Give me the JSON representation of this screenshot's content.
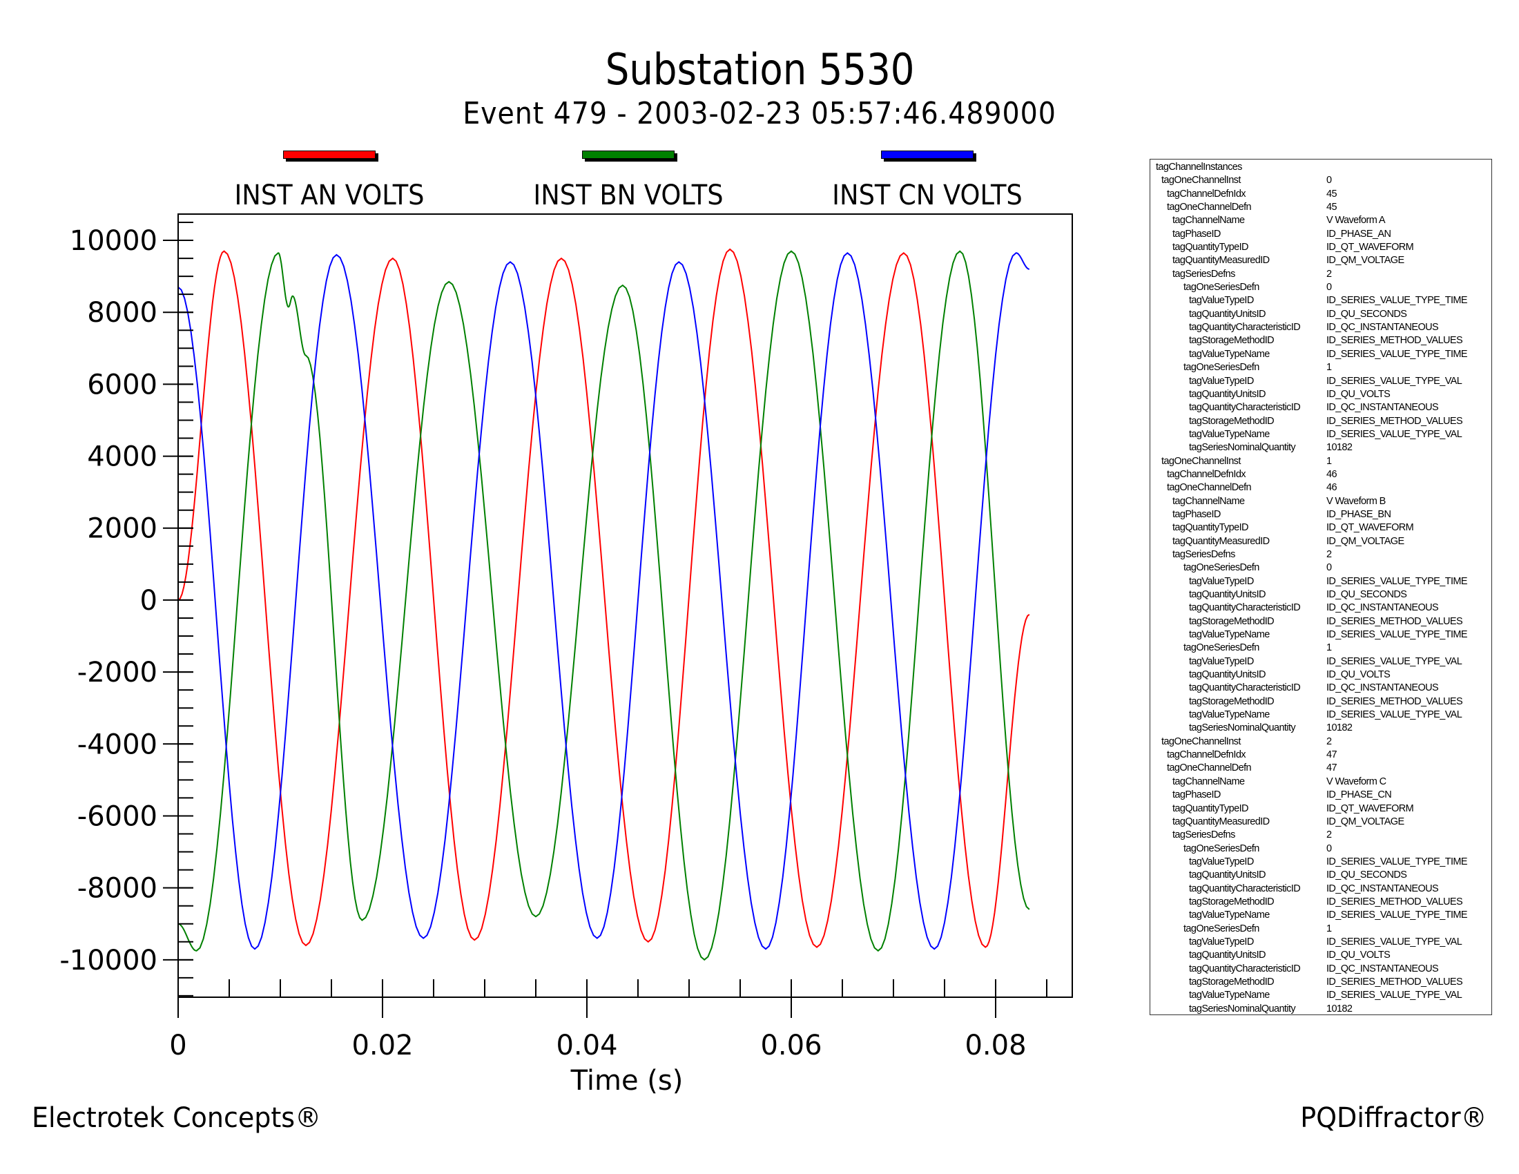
{
  "chart_data": {
    "type": "line",
    "title": "Substation 5530",
    "subtitle": "Event 479 - 2003-02-23 05:57:46.489000",
    "xlabel": "Time (s)",
    "ylabel": "",
    "xlim": [
      0,
      0.0875
    ],
    "ylim": [
      -11040,
      10730
    ],
    "x_ticks": [
      0,
      0.02,
      0.04,
      0.06,
      0.08
    ],
    "x_tick_labels": [
      "0",
      "0.02",
      "0.04",
      "0.06",
      "0.08"
    ],
    "x_minor_step": 0.005,
    "y_ticks": [
      10000,
      8000,
      6000,
      4000,
      2000,
      0,
      -2000,
      -4000,
      -6000,
      -8000,
      -10000
    ],
    "y_tick_labels": [
      "10000",
      "8000",
      "6000",
      "4000",
      "2000",
      "0",
      "-2000",
      "-4000",
      "-6000",
      "-8000",
      "-10000"
    ],
    "y_minor_step": 500,
    "grid": false,
    "legend_position": "top",
    "series": [
      {
        "name": "INST AN VOLTS",
        "color": "#ff0000",
        "points": [
          [
            0,
            0
          ],
          [
            0.0045,
            9700
          ],
          [
            0.0125,
            -9600
          ],
          [
            0.021,
            9500
          ],
          [
            0.029,
            -9450
          ],
          [
            0.0375,
            9500
          ],
          [
            0.046,
            -9500
          ],
          [
            0.054,
            9750
          ],
          [
            0.0625,
            -9650
          ],
          [
            0.071,
            9650
          ],
          [
            0.079,
            -9650
          ],
          [
            0.0833,
            -400
          ]
        ]
      },
      {
        "name": "INST BN VOLTS",
        "color": "#008000",
        "points": [
          [
            0,
            -9000
          ],
          [
            0.0018,
            -9750
          ],
          [
            0.0098,
            9650
          ],
          [
            0.0108,
            8150
          ],
          [
            0.0112,
            8450
          ],
          [
            0.0125,
            6800
          ],
          [
            0.018,
            -8900
          ],
          [
            0.0265,
            8850
          ],
          [
            0.035,
            -8800
          ],
          [
            0.0435,
            8750
          ],
          [
            0.0515,
            -10000
          ],
          [
            0.06,
            9700
          ],
          [
            0.0685,
            -9750
          ],
          [
            0.0765,
            9700
          ],
          [
            0.0833,
            -8600
          ]
        ]
      },
      {
        "name": "INST CN VOLTS",
        "color": "#0000ff",
        "points": [
          [
            0,
            8700
          ],
          [
            0.0075,
            -9700
          ],
          [
            0.0155,
            9600
          ],
          [
            0.024,
            -9400
          ],
          [
            0.0325,
            9400
          ],
          [
            0.041,
            -9400
          ],
          [
            0.049,
            9400
          ],
          [
            0.0575,
            -9700
          ],
          [
            0.0655,
            9650
          ],
          [
            0.074,
            -9700
          ],
          [
            0.082,
            9650
          ],
          [
            0.0833,
            9200
          ]
        ]
      }
    ]
  },
  "footer": {
    "left": "Electrotek Concepts®",
    "right": "PQDiffractor®"
  },
  "metadata_panel": {
    "rows": [
      {
        "key": "tagChannelInstances",
        "value": "",
        "indent": 0
      },
      {
        "key": "tagOneChannelInst",
        "value": "0",
        "indent": 1
      },
      {
        "key": "tagChannelDefnIdx",
        "value": "45",
        "indent": 2
      },
      {
        "key": "tagOneChannelDefn",
        "value": "45",
        "indent": 2
      },
      {
        "key": "tagChannelName",
        "value": "V Waveform A",
        "indent": 3
      },
      {
        "key": "tagPhaseID",
        "value": "ID_PHASE_AN",
        "indent": 3
      },
      {
        "key": "tagQuantityTypeID",
        "value": "ID_QT_WAVEFORM",
        "indent": 3
      },
      {
        "key": "tagQuantityMeasuredID",
        "value": "ID_QM_VOLTAGE",
        "indent": 3
      },
      {
        "key": "tagSeriesDefns",
        "value": "2",
        "indent": 3
      },
      {
        "key": "tagOneSeriesDefn",
        "value": "0",
        "indent": 4
      },
      {
        "key": "tagValueTypeID",
        "value": "ID_SERIES_VALUE_TYPE_TIME",
        "indent": 5
      },
      {
        "key": "tagQuantityUnitsID",
        "value": "ID_QU_SECONDS",
        "indent": 5
      },
      {
        "key": "tagQuantityCharacteristicID",
        "value": "ID_QC_INSTANTANEOUS",
        "indent": 5
      },
      {
        "key": "tagStorageMethodID",
        "value": "ID_SERIES_METHOD_VALUES",
        "indent": 5
      },
      {
        "key": "tagValueTypeName",
        "value": "ID_SERIES_VALUE_TYPE_TIME",
        "indent": 5
      },
      {
        "key": "tagOneSeriesDefn",
        "value": "1",
        "indent": 4
      },
      {
        "key": "tagValueTypeID",
        "value": "ID_SERIES_VALUE_TYPE_VAL",
        "indent": 5
      },
      {
        "key": "tagQuantityUnitsID",
        "value": "ID_QU_VOLTS",
        "indent": 5
      },
      {
        "key": "tagQuantityCharacteristicID",
        "value": "ID_QC_INSTANTANEOUS",
        "indent": 5
      },
      {
        "key": "tagStorageMethodID",
        "value": "ID_SERIES_METHOD_VALUES",
        "indent": 5
      },
      {
        "key": "tagValueTypeName",
        "value": "ID_SERIES_VALUE_TYPE_VAL",
        "indent": 5
      },
      {
        "key": "tagSeriesNominalQuantity",
        "value": "10182",
        "indent": 5
      },
      {
        "key": "tagOneChannelInst",
        "value": "1",
        "indent": 1
      },
      {
        "key": "tagChannelDefnIdx",
        "value": "46",
        "indent": 2
      },
      {
        "key": "tagOneChannelDefn",
        "value": "46",
        "indent": 2
      },
      {
        "key": "tagChannelName",
        "value": "V Waveform B",
        "indent": 3
      },
      {
        "key": "tagPhaseID",
        "value": "ID_PHASE_BN",
        "indent": 3
      },
      {
        "key": "tagQuantityTypeID",
        "value": "ID_QT_WAVEFORM",
        "indent": 3
      },
      {
        "key": "tagQuantityMeasuredID",
        "value": "ID_QM_VOLTAGE",
        "indent": 3
      },
      {
        "key": "tagSeriesDefns",
        "value": "2",
        "indent": 3
      },
      {
        "key": "tagOneSeriesDefn",
        "value": "0",
        "indent": 4
      },
      {
        "key": "tagValueTypeID",
        "value": "ID_SERIES_VALUE_TYPE_TIME",
        "indent": 5
      },
      {
        "key": "tagQuantityUnitsID",
        "value": "ID_QU_SECONDS",
        "indent": 5
      },
      {
        "key": "tagQuantityCharacteristicID",
        "value": "ID_QC_INSTANTANEOUS",
        "indent": 5
      },
      {
        "key": "tagStorageMethodID",
        "value": "ID_SERIES_METHOD_VALUES",
        "indent": 5
      },
      {
        "key": "tagValueTypeName",
        "value": "ID_SERIES_VALUE_TYPE_TIME",
        "indent": 5
      },
      {
        "key": "tagOneSeriesDefn",
        "value": "1",
        "indent": 4
      },
      {
        "key": "tagValueTypeID",
        "value": "ID_SERIES_VALUE_TYPE_VAL",
        "indent": 5
      },
      {
        "key": "tagQuantityUnitsID",
        "value": "ID_QU_VOLTS",
        "indent": 5
      },
      {
        "key": "tagQuantityCharacteristicID",
        "value": "ID_QC_INSTANTANEOUS",
        "indent": 5
      },
      {
        "key": "tagStorageMethodID",
        "value": "ID_SERIES_METHOD_VALUES",
        "indent": 5
      },
      {
        "key": "tagValueTypeName",
        "value": "ID_SERIES_VALUE_TYPE_VAL",
        "indent": 5
      },
      {
        "key": "tagSeriesNominalQuantity",
        "value": "10182",
        "indent": 5
      },
      {
        "key": "tagOneChannelInst",
        "value": "2",
        "indent": 1
      },
      {
        "key": "tagChannelDefnIdx",
        "value": "47",
        "indent": 2
      },
      {
        "key": "tagOneChannelDefn",
        "value": "47",
        "indent": 2
      },
      {
        "key": "tagChannelName",
        "value": "V Waveform C",
        "indent": 3
      },
      {
        "key": "tagPhaseID",
        "value": "ID_PHASE_CN",
        "indent": 3
      },
      {
        "key": "tagQuantityTypeID",
        "value": "ID_QT_WAVEFORM",
        "indent": 3
      },
      {
        "key": "tagQuantityMeasuredID",
        "value": "ID_QM_VOLTAGE",
        "indent": 3
      },
      {
        "key": "tagSeriesDefns",
        "value": "2",
        "indent": 3
      },
      {
        "key": "tagOneSeriesDefn",
        "value": "0",
        "indent": 4
      },
      {
        "key": "tagValueTypeID",
        "value": "ID_SERIES_VALUE_TYPE_TIME",
        "indent": 5
      },
      {
        "key": "tagQuantityUnitsID",
        "value": "ID_QU_SECONDS",
        "indent": 5
      },
      {
        "key": "tagQuantityCharacteristicID",
        "value": "ID_QC_INSTANTANEOUS",
        "indent": 5
      },
      {
        "key": "tagStorageMethodID",
        "value": "ID_SERIES_METHOD_VALUES",
        "indent": 5
      },
      {
        "key": "tagValueTypeName",
        "value": "ID_SERIES_VALUE_TYPE_TIME",
        "indent": 5
      },
      {
        "key": "tagOneSeriesDefn",
        "value": "1",
        "indent": 4
      },
      {
        "key": "tagValueTypeID",
        "value": "ID_SERIES_VALUE_TYPE_VAL",
        "indent": 5
      },
      {
        "key": "tagQuantityUnitsID",
        "value": "ID_QU_VOLTS",
        "indent": 5
      },
      {
        "key": "tagQuantityCharacteristicID",
        "value": "ID_QC_INSTANTANEOUS",
        "indent": 5
      },
      {
        "key": "tagStorageMethodID",
        "value": "ID_SERIES_METHOD_VALUES",
        "indent": 5
      },
      {
        "key": "tagValueTypeName",
        "value": "ID_SERIES_VALUE_TYPE_VAL",
        "indent": 5
      },
      {
        "key": "tagSeriesNominalQuantity",
        "value": "10182",
        "indent": 5
      }
    ]
  }
}
